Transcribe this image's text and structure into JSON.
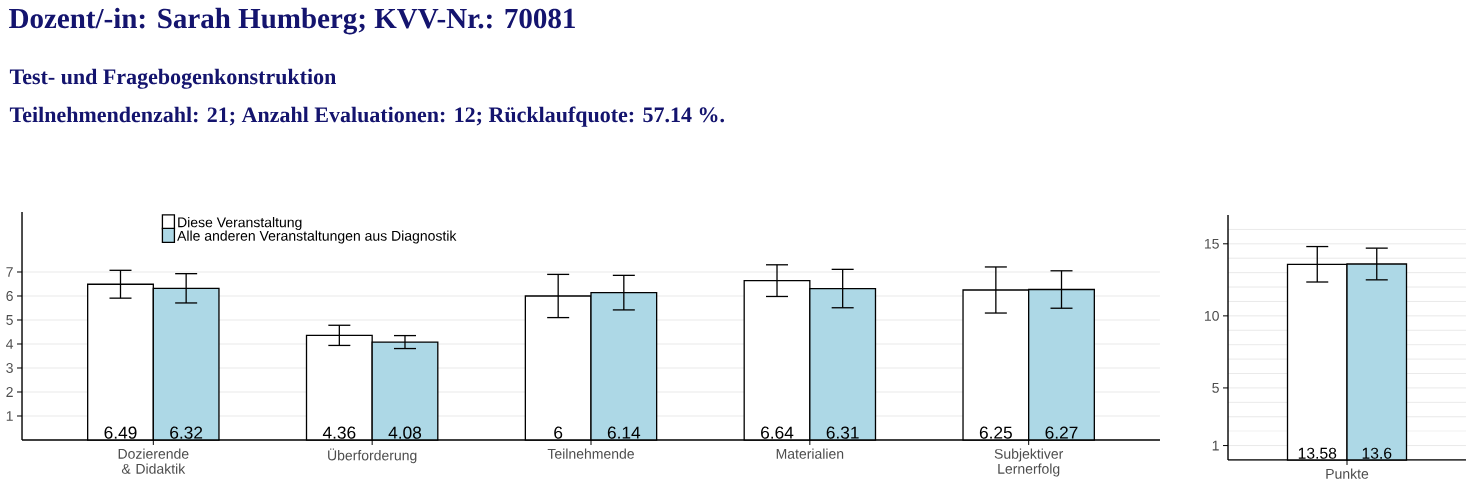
{
  "chart_data": [
    {
      "type": "bar",
      "title": "Dozent/-in: Sarah Humberg; KVV-Nr.: 70081",
      "subtitle": "Test- und Fragebogenkonstruktion",
      "annotations": [
        "Teilnehmendenzahl: 21; Anzahl Evaluationen: 12; Rücklaufquote: 57.14 %."
      ],
      "categories": [
        "Dozierende & Didaktik",
        "Überforderung",
        "Teilnehmende",
        "Materialien",
        "Subjektiver Lernerfolg"
      ],
      "series": [
        {
          "name": "Diese Veranstaltung",
          "color": "#ffffff",
          "values": [
            6.49,
            4.36,
            6,
            6.64,
            6.25
          ],
          "errors": [
            0.58,
            0.42,
            0.9,
            0.66,
            0.96
          ]
        },
        {
          "name": "Alle anderen Veranstaltungen aus Diagnostik",
          "color": "#add8e6",
          "values": [
            6.32,
            4.08,
            6.14,
            6.31,
            6.27
          ],
          "errors": [
            0.61,
            0.27,
            0.72,
            0.8,
            0.78
          ]
        }
      ],
      "ylim": [
        0,
        9.5
      ],
      "yticks": [
        1,
        2,
        3,
        4,
        5,
        6,
        7
      ],
      "grid": "y",
      "legend": "top left",
      "data_labels": true
    },
    {
      "type": "bar",
      "categories": [
        "Punkte"
      ],
      "series": [
        {
          "color": "#ffffff",
          "values": [
            13.58
          ],
          "errors": [
            1.23
          ]
        },
        {
          "color": "#add8e6",
          "values": [
            13.6
          ],
          "errors": [
            1.1
          ]
        }
      ],
      "ylim": [
        0,
        17
      ],
      "yticks": [
        1,
        {
          "value": 2,
          "label": null
        },
        {
          "value": 3,
          "label": null
        },
        {
          "value": 4,
          "label": null
        },
        5,
        {
          "value": 6,
          "label": null
        },
        {
          "value": 7,
          "label": null
        },
        {
          "value": 8,
          "label": null
        },
        {
          "value": 9,
          "label": null
        },
        10,
        {
          "value": 11,
          "label": null
        },
        {
          "value": 12,
          "label": null
        },
        {
          "value": 13,
          "label": null
        },
        {
          "value": 14,
          "label": null
        },
        15,
        {
          "value": 16,
          "label": null
        }
      ],
      "grid": "y",
      "data_labels": true
    }
  ]
}
